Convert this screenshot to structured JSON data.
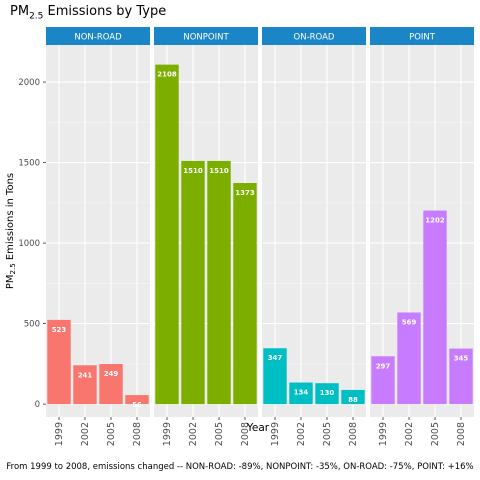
{
  "chart_data": {
    "type": "bar",
    "title": {
      "main": "PM",
      "sub": "2.5",
      "rest": " Emissions by Type"
    },
    "xlabel": "Year",
    "ylabel": {
      "main": "PM",
      "sub": "2.5",
      "rest": " Emissions in Tons"
    },
    "categories": [
      "1999",
      "2002",
      "2005",
      "2008"
    ],
    "ylim": [
      -80,
      2230
    ],
    "yticks": [
      0,
      500,
      1000,
      1500,
      2000
    ],
    "ytick_labels": [
      "0",
      "500",
      "1000",
      "1500",
      "2000"
    ],
    "grid": true,
    "strip_color": "#1a86c7",
    "panel_bg": "#ebebeb",
    "panels": [
      {
        "name": "NON-ROAD",
        "color": "#f8766d",
        "values": [
          523,
          241,
          249,
          56
        ],
        "labels": [
          "523",
          "241",
          "249",
          "56"
        ]
      },
      {
        "name": "NONPOINT",
        "color": "#7cae00",
        "values": [
          2108,
          1510,
          1510,
          1373
        ],
        "labels": [
          "2108",
          "1510",
          "1510",
          "1373"
        ]
      },
      {
        "name": "ON-ROAD",
        "color": "#00bfc4",
        "values": [
          347,
          134,
          130,
          88
        ],
        "labels": [
          "347",
          "134",
          "130",
          "88"
        ]
      },
      {
        "name": "POINT",
        "color": "#c77cff",
        "values": [
          297,
          569,
          1202,
          345
        ],
        "labels": [
          "297",
          "569",
          "1202",
          "345"
        ]
      }
    ],
    "caption": "From 1999 to 2008, emissions changed -- NON-ROAD: -89%, NONPOINT: -35%, ON-ROAD: -75%, POINT: +16%"
  }
}
